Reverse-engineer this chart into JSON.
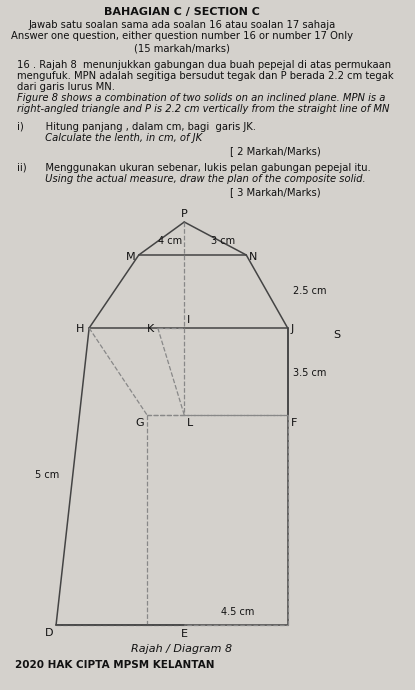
{
  "title_line1": "BAHAGIAN C / SECTION C",
  "subtitle_line1": "Jawab satu soalan sama ada soalan 16 atau soalan 17 sahaja",
  "subtitle_line2": "Answer one question, either question number 16 or number 17 Only",
  "subtitle_line3": "(15 markah/marks)",
  "q16_text1": "16 . Rajah 8  menunjukkan gabungan dua buah pepejal di atas permukaan",
  "q16_text2": "mengufuk. MPN adalah segitiga bersudut tegak dan P berada 2.2 cm tegak",
  "q16_text3": "dari garis lurus MN.",
  "q16_text4": "Figure 8 shows a combination of two solids on an inclined plane. MPN is a",
  "q16_text5": "right-angled triangle and P is 2.2 cm vertically from the straight line of MN",
  "qi_text1": "i)       Hitung panjang , dalam cm, bagi  garis JK.",
  "qi_text2": "         Calculate the lenth, in cm, of JK",
  "qi_marks": "[ 2 Markah/Marks)",
  "qii_text1": "ii)      Menggunakan ukuran sebenar, lukis pelan gabungan pepejal itu.",
  "qii_text2": "         Using the actual measure, draw the plan of the composite solid.",
  "qii_marks": "[ 3 Markah/Marks)",
  "diagram_label": "Rajah / Diagram 8",
  "copyright": "2020 HAK CIPTA MPSM KELANTAN",
  "bg_color": "#d4d1cc",
  "line_color": "#444444",
  "dashed_color": "#888888",
  "text_color": "#111111",
  "dim_4cm": "4 cm",
  "dim_3cm": "3 cm",
  "dim_2p5cm": "2.5 cm",
  "dim_3p5cm": "3.5 cm",
  "dim_5cm": "5 cm",
  "dim_4p5cm": "4.5 cm",
  "label_P": "P",
  "label_M": "M",
  "label_N": "N",
  "label_H": "H",
  "label_K": "K",
  "label_I": "I",
  "label_J": "J",
  "label_G": "G",
  "label_L": "L",
  "label_F": "F",
  "label_D": "D",
  "label_E": "E",
  "label_S": "S"
}
